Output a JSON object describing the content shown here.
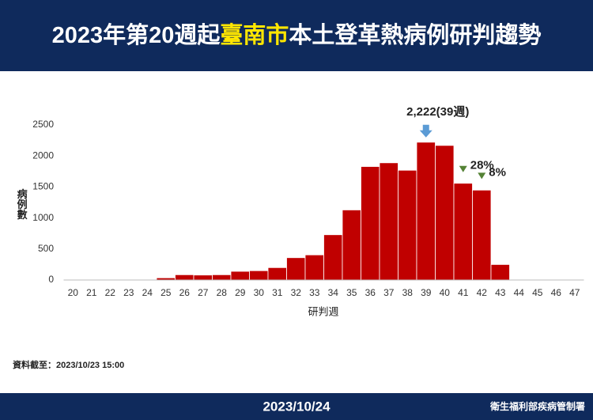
{
  "header": {
    "title_prefix": "2023年第20週起",
    "title_highlight": "臺南市",
    "title_suffix": "本土登革熱病例研判趨勢"
  },
  "chart_data": {
    "type": "bar",
    "categories": [
      "20",
      "21",
      "22",
      "23",
      "24",
      "25",
      "26",
      "27",
      "28",
      "29",
      "30",
      "31",
      "32",
      "33",
      "34",
      "35",
      "36",
      "37",
      "38",
      "39",
      "40",
      "41",
      "42",
      "43",
      "44",
      "45",
      "46",
      "47"
    ],
    "values": [
      0,
      0,
      0,
      0,
      0,
      35,
      85,
      80,
      85,
      140,
      150,
      200,
      360,
      405,
      730,
      1130,
      1830,
      1890,
      1770,
      2222,
      2170,
      1560,
      1450,
      250,
      null,
      null,
      null,
      null
    ],
    "color": "#c00000",
    "ylim": [
      0,
      2500
    ],
    "yticks": [
      0,
      500,
      1000,
      1500,
      2000,
      2500
    ],
    "y_label": "病例數",
    "x_label": "研判週",
    "grid": false,
    "annotations": [
      {
        "text": "2,222(39週)",
        "category": "39",
        "marker": "arrow",
        "color": "#5b9bd5"
      },
      {
        "text": "28%",
        "category": "41",
        "marker": "triangle",
        "color": "#548235"
      },
      {
        "text": "8%",
        "category": "42",
        "marker": "triangle",
        "color": "#548235"
      }
    ]
  },
  "footnote": "資料截至：2023/10/23 15:00",
  "footer": {
    "date": "2023/10/24",
    "agency": "衛生福利部疾病管制署"
  }
}
